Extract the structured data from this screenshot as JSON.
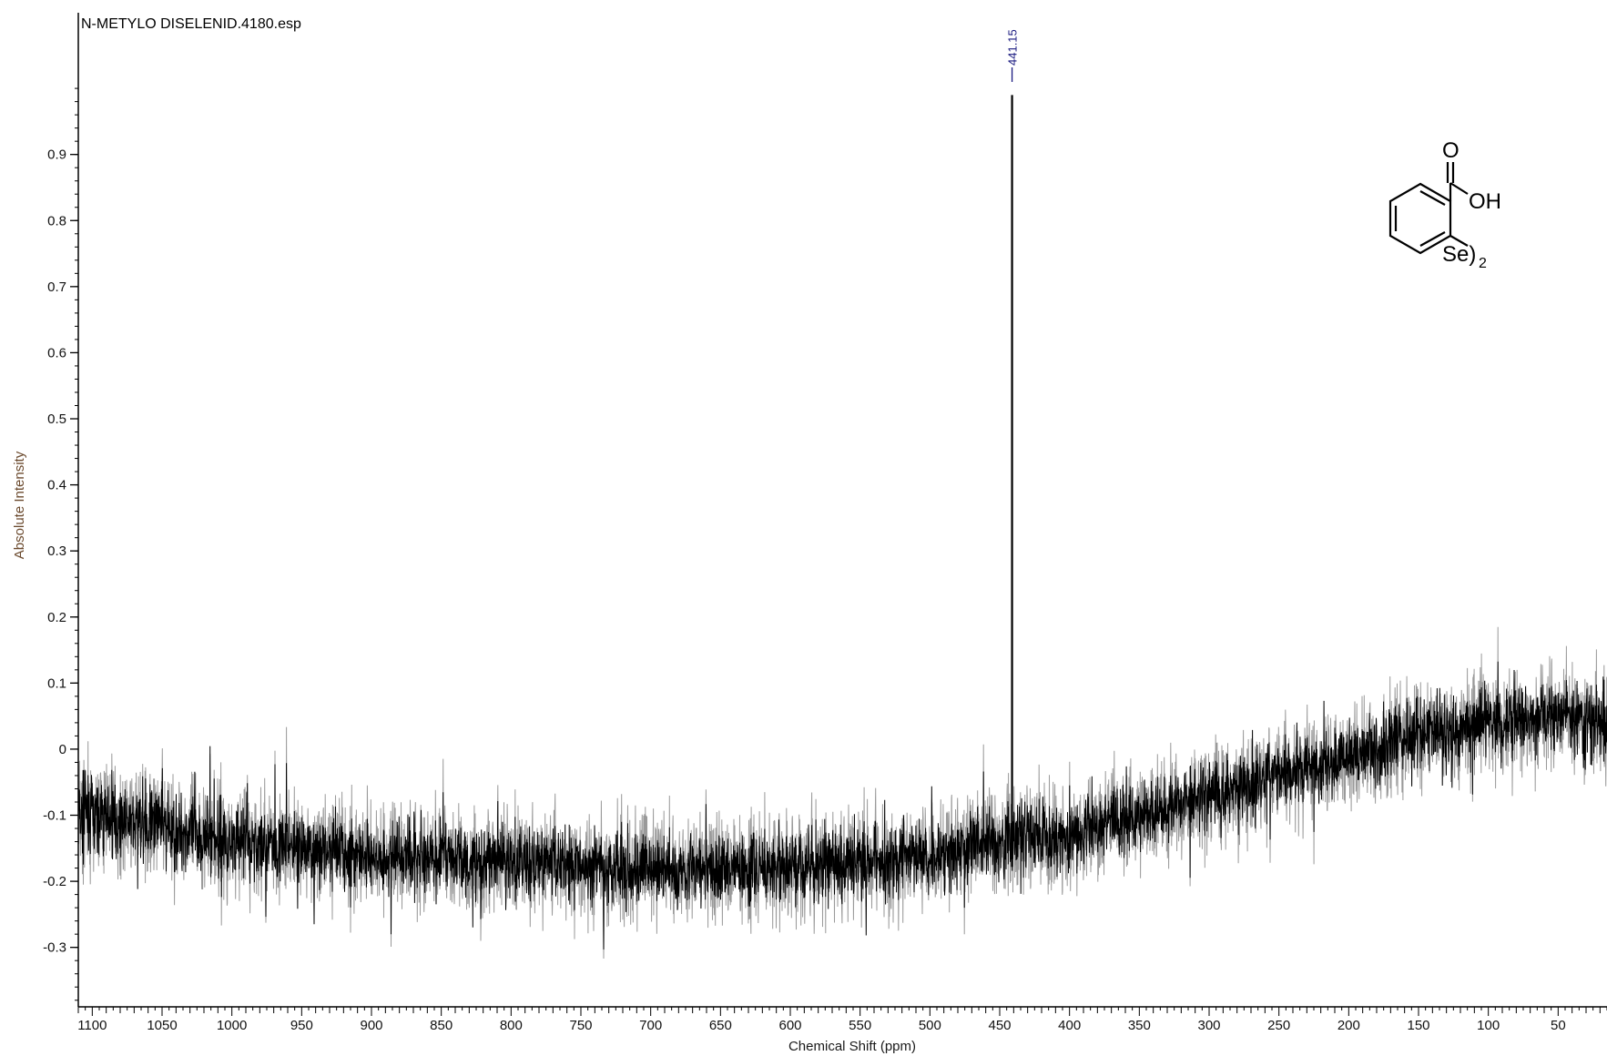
{
  "chart_data": {
    "type": "line",
    "title": "N-METYLO DISELENID.4180.esp",
    "xlabel": "Chemical Shift (ppm)",
    "ylabel": "Absolute Intensity",
    "xlim": [
      1110,
      15
    ],
    "ylim": [
      -0.39,
      1.12
    ],
    "x_reversed": true,
    "x_ticks": [
      1100,
      1050,
      1000,
      950,
      900,
      850,
      800,
      750,
      700,
      650,
      600,
      550,
      500,
      450,
      400,
      350,
      300,
      250,
      200,
      150,
      100,
      50
    ],
    "y_ticks": [
      0.9,
      0.8,
      0.7,
      0.6,
      0.5,
      0.4,
      0.3,
      0.2,
      0.1,
      0,
      -0.1,
      -0.2,
      -0.3
    ],
    "y_tick_labels": [
      "0.9",
      "0.8",
      "0.7",
      "0.6",
      "0.5",
      "0.4",
      "0.3",
      "0.2",
      "0.1",
      "0",
      "-0.1",
      "-0.2",
      "-0.3"
    ],
    "grid": false,
    "peaks": [
      {
        "x": 441.15,
        "y": 0.99,
        "label": "441.15"
      }
    ],
    "baseline": [
      {
        "x": 1110,
        "y": -0.1
      },
      {
        "x": 1050,
        "y": -0.12
      },
      {
        "x": 1000,
        "y": -0.14
      },
      {
        "x": 900,
        "y": -0.16
      },
      {
        "x": 800,
        "y": -0.17
      },
      {
        "x": 700,
        "y": -0.18
      },
      {
        "x": 600,
        "y": -0.18
      },
      {
        "x": 500,
        "y": -0.16
      },
      {
        "x": 450,
        "y": -0.14
      },
      {
        "x": 400,
        "y": -0.13
      },
      {
        "x": 350,
        "y": -0.1
      },
      {
        "x": 300,
        "y": -0.07
      },
      {
        "x": 250,
        "y": -0.04
      },
      {
        "x": 200,
        "y": -0.01
      },
      {
        "x": 150,
        "y": 0.02
      },
      {
        "x": 100,
        "y": 0.04
      },
      {
        "x": 50,
        "y": 0.05
      },
      {
        "x": 15,
        "y": 0.04
      }
    ],
    "noise_amplitude": 0.07,
    "series": [
      {
        "color": "#000000"
      }
    ]
  },
  "structure": {
    "carbonyl_o": "O",
    "hydroxyl": "OH",
    "selenium": "Se)",
    "subscript": "2"
  },
  "colors": {
    "trace": "#000000",
    "trace_shadow": "#9a9a9a",
    "axis_title": "#6b4a2e",
    "peak_label": "#1a1a80"
  }
}
